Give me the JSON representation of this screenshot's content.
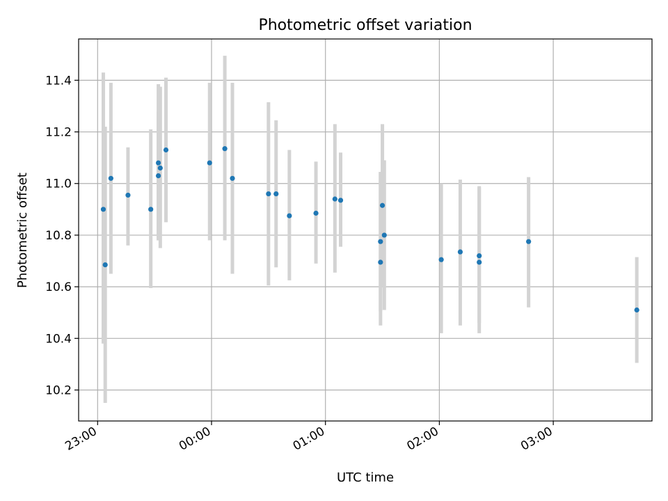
{
  "chart_data": {
    "type": "scatter",
    "title": "Photometric offset variation",
    "xlabel": "UTC time",
    "ylabel": "Photometric offset",
    "x_unit": "UTC time (HH:MM)",
    "xlim": [
      "22:50",
      "03:52"
    ],
    "ylim": [
      10.08,
      11.56
    ],
    "x_ticks": [
      "23:00",
      "00:00",
      "01:00",
      "02:00",
      "03:00"
    ],
    "y_ticks": [
      10.2,
      10.4,
      10.6,
      10.8,
      11.0,
      11.2,
      11.4
    ],
    "grid": true,
    "colors": {
      "point": "#1f77b4",
      "errorbar": "#d3d3d3"
    },
    "points": [
      {
        "t": "23:03",
        "y": 10.9,
        "lo": 10.38,
        "hi": 11.43
      },
      {
        "t": "23:04",
        "y": 10.685,
        "lo": 10.15,
        "hi": 11.22
      },
      {
        "t": "23:07",
        "y": 11.02,
        "lo": 10.65,
        "hi": 11.39
      },
      {
        "t": "23:16",
        "y": 10.955,
        "lo": 10.76,
        "hi": 11.14
      },
      {
        "t": "23:28",
        "y": 10.9,
        "lo": 10.595,
        "hi": 11.21
      },
      {
        "t": "23:32",
        "y": 11.03,
        "lo": 10.78,
        "hi": 11.28
      },
      {
        "t": "23:32",
        "y": 11.08,
        "lo": 10.78,
        "hi": 11.385
      },
      {
        "t": "23:33",
        "y": 11.06,
        "lo": 10.75,
        "hi": 11.375
      },
      {
        "t": "23:36",
        "y": 11.13,
        "lo": 10.85,
        "hi": 11.41
      },
      {
        "t": "23:59",
        "y": 11.08,
        "lo": 10.78,
        "hi": 11.39
      },
      {
        "t": "00:07",
        "y": 11.135,
        "lo": 10.78,
        "hi": 11.495
      },
      {
        "t": "00:11",
        "y": 11.02,
        "lo": 10.65,
        "hi": 11.39
      },
      {
        "t": "00:30",
        "y": 10.96,
        "lo": 10.605,
        "hi": 11.315
      },
      {
        "t": "00:34",
        "y": 10.96,
        "lo": 10.675,
        "hi": 11.245
      },
      {
        "t": "00:41",
        "y": 10.875,
        "lo": 10.625,
        "hi": 11.13
      },
      {
        "t": "00:55",
        "y": 10.885,
        "lo": 10.69,
        "hi": 11.085
      },
      {
        "t": "01:05",
        "y": 10.94,
        "lo": 10.655,
        "hi": 11.23
      },
      {
        "t": "01:08",
        "y": 10.935,
        "lo": 10.755,
        "hi": 11.12
      },
      {
        "t": "01:29",
        "y": 10.695,
        "lo": 10.45,
        "hi": 11.045
      },
      {
        "t": "01:29",
        "y": 10.775,
        "lo": 10.505,
        "hi": 11.045
      },
      {
        "t": "01:30",
        "y": 10.915,
        "lo": 10.6,
        "hi": 11.23
      },
      {
        "t": "01:31",
        "y": 10.8,
        "lo": 10.51,
        "hi": 11.09
      },
      {
        "t": "02:01",
        "y": 10.705,
        "lo": 10.42,
        "hi": 11.0
      },
      {
        "t": "02:11",
        "y": 10.735,
        "lo": 10.45,
        "hi": 11.015
      },
      {
        "t": "02:21",
        "y": 10.695,
        "lo": 10.42,
        "hi": 10.99
      },
      {
        "t": "02:21",
        "y": 10.72,
        "lo": 10.46,
        "hi": 10.985
      },
      {
        "t": "02:47",
        "y": 10.775,
        "lo": 10.52,
        "hi": 11.025
      },
      {
        "t": "03:44",
        "y": 10.51,
        "lo": 10.305,
        "hi": 10.715
      }
    ]
  }
}
